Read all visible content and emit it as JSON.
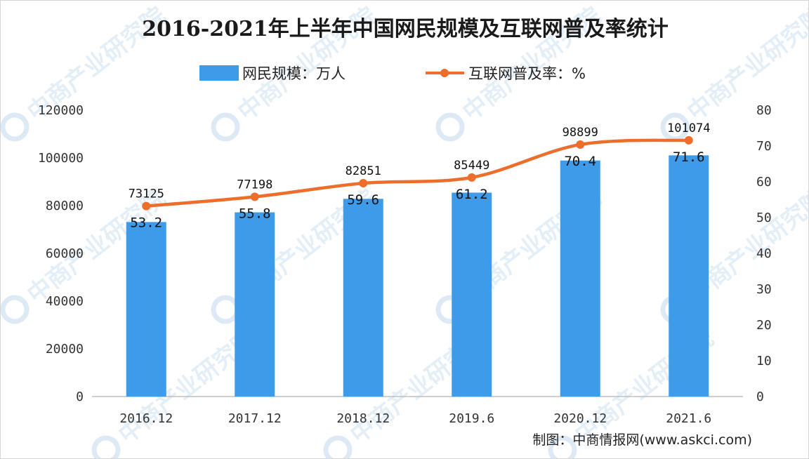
{
  "chart_data": {
    "type": "bar",
    "title": "2016-2021年上半年中国网民规模及互联网普及率统计",
    "categories": [
      "2016.12",
      "2017.12",
      "2018.12",
      "2019.6",
      "2020.12",
      "2021.6"
    ],
    "series": [
      {
        "name": "网民规模：万人",
        "type": "bar",
        "axis": "left",
        "values": [
          73125,
          77198,
          82851,
          85449,
          98899,
          101074
        ],
        "color": "#3d9be9"
      },
      {
        "name": "互联网普及率：%",
        "type": "line",
        "axis": "right",
        "values": [
          53.2,
          55.8,
          59.6,
          61.2,
          70.4,
          71.6
        ],
        "color": "#ed6e2b"
      }
    ],
    "y_left": {
      "ylim": [
        0,
        120000
      ],
      "ticks": [
        "0",
        "20000",
        "40000",
        "60000",
        "80000",
        "100000",
        "120000"
      ]
    },
    "y_right": {
      "ylim": [
        0,
        80
      ],
      "ticks": [
        "0",
        "10",
        "20",
        "30",
        "40",
        "50",
        "60",
        "70",
        "80"
      ]
    },
    "xlabel": "",
    "ylabel": "",
    "grid": false,
    "legend_position": "top-center"
  },
  "source_note": "制图：中商情报网(www.askci.com)",
  "watermark": {
    "text": "中商产业研究院",
    "color": "#9ec3e6"
  }
}
